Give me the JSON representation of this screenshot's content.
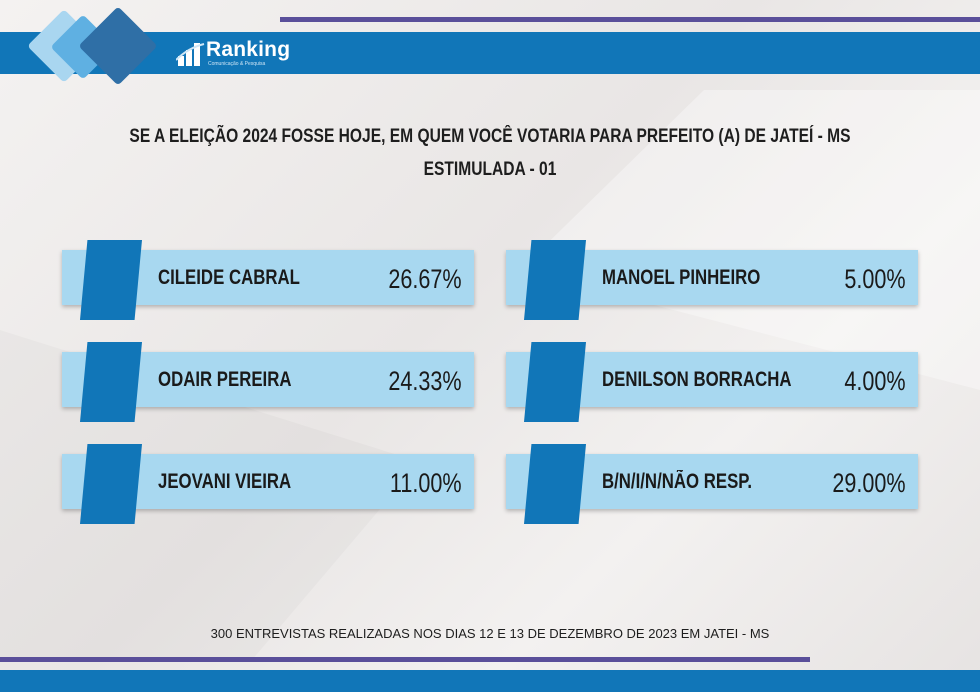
{
  "brand": {
    "name": "Ranking",
    "tagline": "Comunicação & Pesquisa"
  },
  "title": {
    "line1": "SE A ELEIÇÃO 2024 FOSSE HOJE, EM QUEM VOCÊ VOTARIA PARA PREFEITO (A) DE JATEÍ - MS",
    "line2": "ESTIMULADA - 01"
  },
  "chart_data": {
    "type": "table",
    "title": "SE A ELEIÇÃO 2024 FOSSE HOJE, EM QUEM VOCÊ VOTARIA PARA PREFEITO (A) DE JATEÍ - MS",
    "subtitle": "ESTIMULADA - 01",
    "categories": [
      "CILEIDE CABRAL",
      "ODAIR PEREIRA",
      "JEOVANI VIEIRA",
      "MANOEL PINHEIRO",
      "DENILSON BORRACHA",
      "B/N/I/N/NÃO RESP."
    ],
    "values": [
      26.67,
      24.33,
      11.0,
      5.0,
      4.0,
      29.0
    ],
    "labels": [
      "26.67%",
      "24.33%",
      "11.00%",
      "5.00%",
      "4.00%",
      "29.00%"
    ]
  },
  "colors": {
    "accent": "#1176b8",
    "card": "#a8d8f0",
    "line": "#5a4f9a"
  },
  "footer": "300 ENTREVISTAS REALIZADAS NOS DIAS 12 E 13 DE DEZEMBRO DE 2023 EM JATEI - MS"
}
